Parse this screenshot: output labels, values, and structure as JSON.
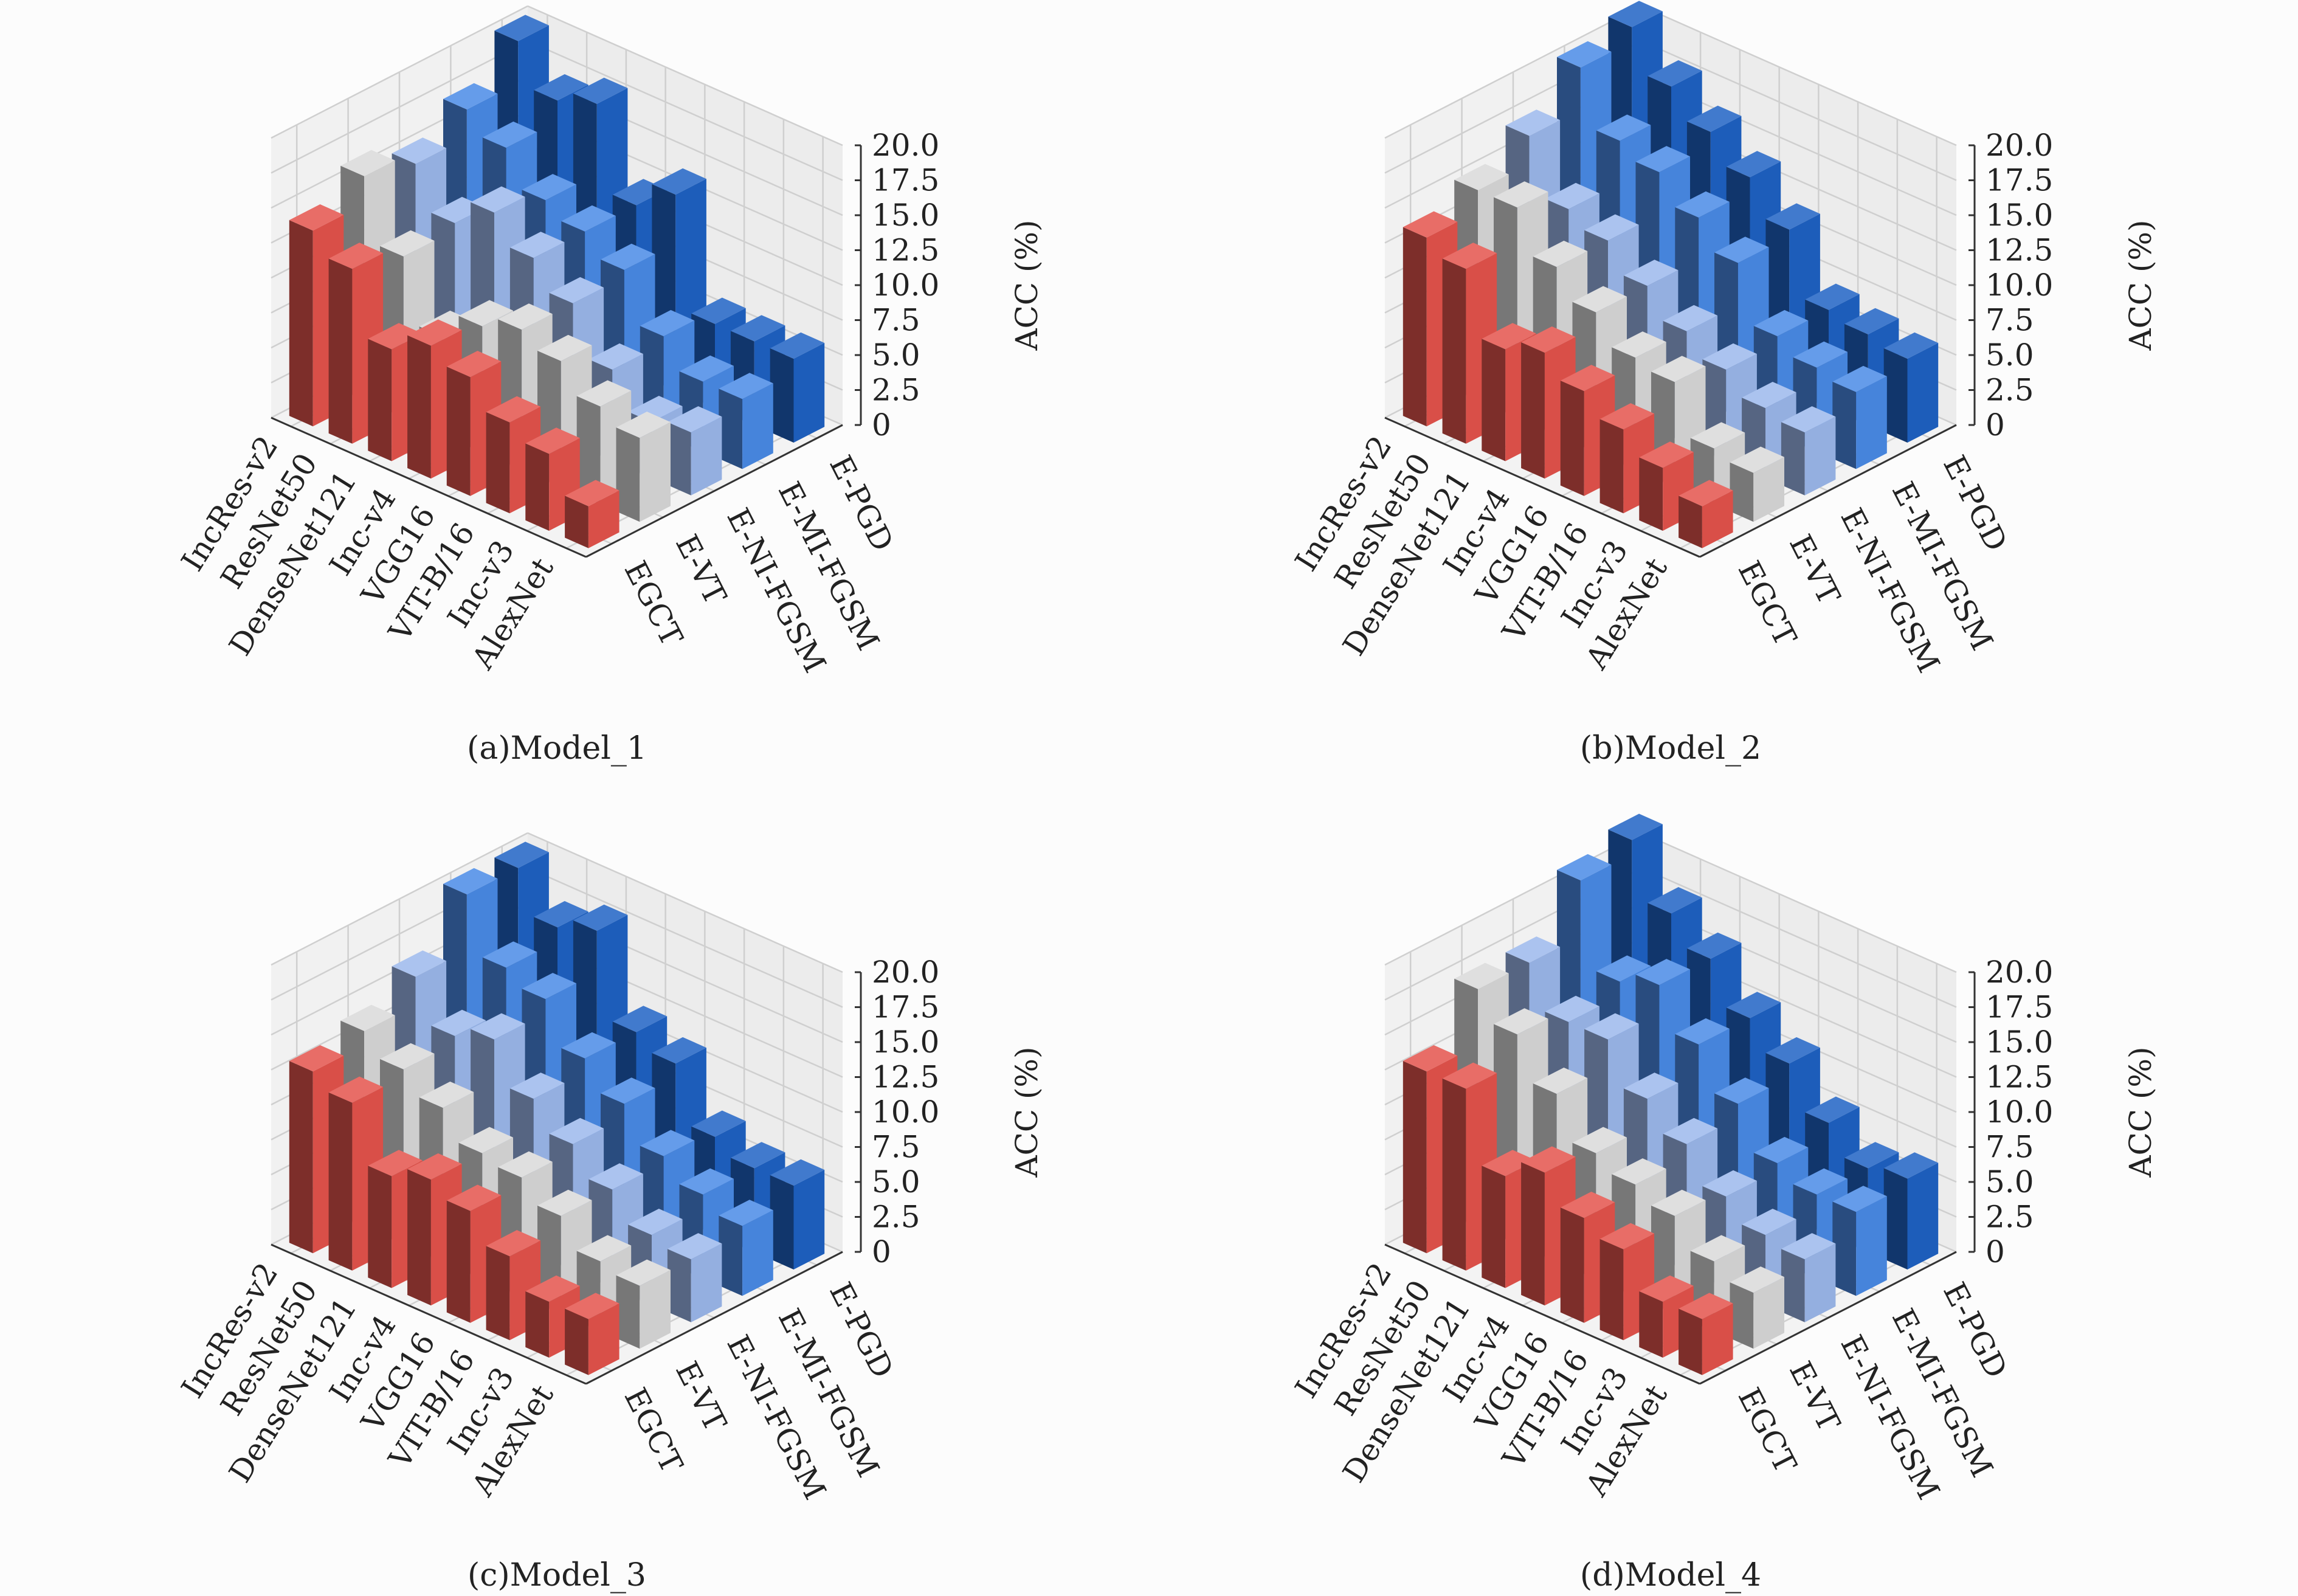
{
  "chart_data": [
    {
      "type": "bar3d",
      "caption": "(a)Model_1",
      "zlabel": "ACC (%)",
      "zlim": [
        0,
        20
      ],
      "zticks": [
        "0",
        "2.5",
        "5.0",
        "7.5",
        "10.0",
        "12.5",
        "15.0",
        "17.5",
        "20.0"
      ],
      "categories": [
        "IncRes-v2",
        "ResNet50",
        "DenseNet121",
        "Inc-v4",
        "VGG16",
        "VIT-B/16",
        "Inc-v3",
        "AlexNet"
      ],
      "series": [
        {
          "name": "EGCT",
          "values": [
            14,
            12.5,
            8,
            9.5,
            8.5,
            6.5,
            5.5,
            3
          ]
        },
        {
          "name": "E-VT",
          "values": [
            16,
            11.5,
            7,
            9,
            10,
            9,
            7,
            6
          ]
        },
        {
          "name": "E-NI-FGSM",
          "values": [
            15,
            12,
            14,
            12,
            10,
            6.5,
            4,
            4.5
          ]
        },
        {
          "name": "E-MI-FGSM",
          "values": [
            17,
            15.5,
            13,
            12,
            10.5,
            7,
            5,
            5
          ]
        },
        {
          "name": "E-PGD",
          "values": [
            20,
            17,
            18,
            12,
            14,
            6,
            6,
            6
          ]
        }
      ]
    },
    {
      "type": "bar3d",
      "caption": "(b)Model_2",
      "zlabel": "ACC (%)",
      "zlim": [
        0,
        20
      ],
      "zticks": [
        "0",
        "2.5",
        "5.0",
        "7.5",
        "10.0",
        "12.5",
        "15.0",
        "17.5",
        "20.0"
      ],
      "categories": [
        "IncRes-v2",
        "ResNet50",
        "DenseNet121",
        "Inc-v4",
        "VGG16",
        "VIT-B/16",
        "Inc-v3",
        "AlexNet"
      ],
      "series": [
        {
          "name": "EGCT",
          "values": [
            13.5,
            12.5,
            8,
            9,
            7.5,
            6,
            4.5,
            3
          ]
        },
        {
          "name": "E-VT",
          "values": [
            15,
            15,
            12,
            10,
            8,
            7.5,
            4,
            3.5
          ]
        },
        {
          "name": "E-NI-FGSM",
          "values": [
            17,
            13,
            12,
            10,
            8,
            6.5,
            5,
            4.5
          ]
        },
        {
          "name": "E-MI-FGSM",
          "values": [
            20,
            16,
            15,
            13,
            11,
            7,
            6,
            5.5
          ]
        },
        {
          "name": "E-PGD",
          "values": [
            21,
            18,
            16,
            14,
            11.5,
            7,
            6.5,
            6
          ]
        }
      ]
    },
    {
      "type": "bar3d",
      "caption": "(c)Model_3",
      "zlabel": "ACC (%)",
      "zlim": [
        0,
        20
      ],
      "zticks": [
        "0",
        "2.5",
        "5.0",
        "7.5",
        "10.0",
        "12.5",
        "15.0",
        "17.5",
        "20.0"
      ],
      "categories": [
        "IncRes-v2",
        "ResNet50",
        "DenseNet121",
        "Inc-v4",
        "VGG16",
        "VIT-B/16",
        "Inc-v3",
        "AlexNet"
      ],
      "series": [
        {
          "name": "EGCT",
          "values": [
            13,
            12,
            8,
            9,
            8,
            6,
            4,
            4
          ]
        },
        {
          "name": "E-VT",
          "values": [
            14,
            12.5,
            11,
            9,
            8.5,
            7,
            5,
            4.5
          ]
        },
        {
          "name": "E-NI-FGSM",
          "values": [
            16,
            13,
            14,
            11,
            9,
            7,
            5,
            4.5
          ]
        },
        {
          "name": "E-MI-FGSM",
          "values": [
            20,
            16,
            15,
            12,
            10,
            7.5,
            6,
            5
          ]
        },
        {
          "name": "E-PGD",
          "values": [
            20,
            17,
            18,
            12,
            11,
            7,
            6,
            6
          ]
        }
      ]
    },
    {
      "type": "bar3d",
      "caption": "(d)Model_4",
      "zlabel": "ACC (%)",
      "zlim": [
        0,
        20
      ],
      "zticks": [
        "0",
        "2.5",
        "5.0",
        "7.5",
        "10.0",
        "12.5",
        "15.0",
        "17.5",
        "20.0"
      ],
      "categories": [
        "IncRes-v2",
        "ResNet50",
        "DenseNet121",
        "Inc-v4",
        "VGG16",
        "VIT-B/16",
        "Inc-v3",
        "AlexNet"
      ],
      "series": [
        {
          "name": "EGCT",
          "values": [
            13,
            13,
            8,
            9.5,
            7.5,
            6.5,
            4,
            4
          ]
        },
        {
          "name": "E-VT",
          "values": [
            17,
            15,
            12,
            9,
            8,
            7,
            5,
            4
          ]
        },
        {
          "name": "E-NI-FGSM",
          "values": [
            17,
            14,
            14,
            11,
            9,
            6.5,
            5,
            4.5
          ]
        },
        {
          "name": "E-MI-FGSM",
          "values": [
            21,
            15,
            16,
            13,
            10,
            7,
            6,
            6
          ]
        },
        {
          "name": "E-PGD",
          "values": [
            22,
            18,
            16,
            13,
            11,
            8,
            6,
            6.5
          ]
        }
      ]
    }
  ],
  "colors": {
    "EGCT": "#e4534c",
    "E-VT": "#d9d9d9",
    "E-NI-FGSM": "#9cb8ec",
    "E-MI-FGSM": "#4a8be6",
    "E-PGD": "#1f62c4"
  }
}
